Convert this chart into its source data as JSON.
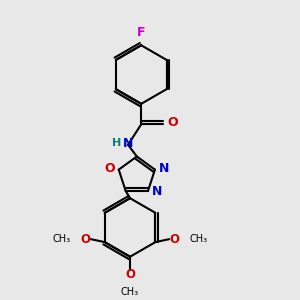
{
  "bg_color": "#e8e8e8",
  "bond_color": "#000000",
  "N_color": "#0000cc",
  "O_color": "#cc0000",
  "F_color": "#cc00cc",
  "H_color": "#008080",
  "line_width": 1.5,
  "fig_size": [
    3.0,
    3.0
  ],
  "dpi": 100,
  "xlim": [
    0,
    10
  ],
  "ylim": [
    0,
    10
  ]
}
